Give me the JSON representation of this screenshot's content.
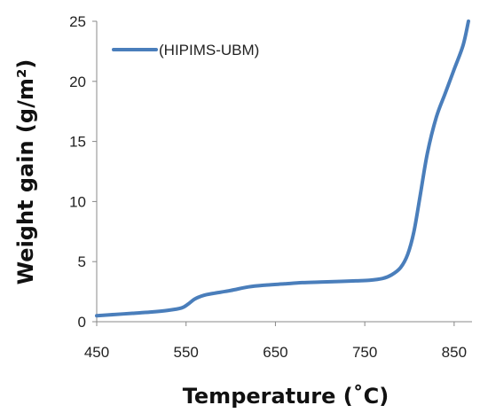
{
  "chart_data": {
    "type": "line",
    "xlabel": "Temperature (˚C)",
    "ylabel": "Weight gain (g/m²)",
    "xlim": [
      450,
      870
    ],
    "ylim": [
      0,
      25
    ],
    "x_ticks": [
      "450",
      "550",
      "650",
      "750",
      "850"
    ],
    "y_ticks": [
      "0",
      "5",
      "10",
      "15",
      "20",
      "25"
    ],
    "grid": false,
    "legend_position": "top-left",
    "series": [
      {
        "name": "(HIPIMS-UBM)",
        "color": "#4a7ebb",
        "x": [
          450,
          470,
          490,
          510,
          530,
          545,
          552,
          560,
          570,
          580,
          600,
          620,
          640,
          660,
          680,
          700,
          720,
          740,
          755,
          770,
          780,
          790,
          798,
          805,
          812,
          820,
          830,
          840,
          850,
          860,
          866
        ],
        "y": [
          0.5,
          0.6,
          0.7,
          0.8,
          0.95,
          1.15,
          1.45,
          1.9,
          2.2,
          2.35,
          2.6,
          2.9,
          3.05,
          3.15,
          3.25,
          3.3,
          3.35,
          3.4,
          3.45,
          3.6,
          3.9,
          4.5,
          5.6,
          7.5,
          10.5,
          14.0,
          17.0,
          19.0,
          21.0,
          23.0,
          25.0
        ]
      }
    ]
  }
}
